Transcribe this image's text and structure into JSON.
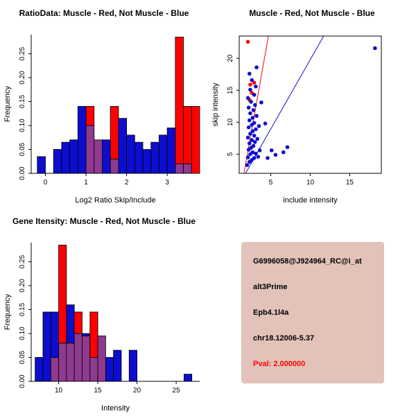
{
  "colors": {
    "red": "#ff0000",
    "blue": "#0d0dcd",
    "overlap": "#8d3a8f",
    "axis": "#000000",
    "info_bg": "#e2c2b9",
    "pval": "#ff0000"
  },
  "info_panel": {
    "probe_id": "G6996058@J924964_RC@i_at",
    "splice_type": "alt3Prime",
    "gene": "Epb4.1l4a",
    "location": "chr18.12006-5.37",
    "pval": "Pval: 2.000000"
  },
  "chart_data": [
    {
      "id": "ratio-hist",
      "type": "bar",
      "title": "RatioData: Muscle - Red, Not Muscle - Blue",
      "xlabel": "Log2 Ratio Skip/Include",
      "ylabel": "Frequency",
      "xlim": [
        -0.35,
        3.8
      ],
      "ylim": [
        0,
        0.29
      ],
      "xticks": [
        0,
        1,
        2,
        3
      ],
      "yticks": [
        0,
        0.05,
        0.1,
        0.15,
        0.2,
        0.25
      ],
      "ytick_dec": 2,
      "bin_width": 0.2,
      "series": [
        {
          "name": "Muscle",
          "color_key": "red"
        },
        {
          "name": "Not Muscle",
          "color_key": "blue"
        }
      ],
      "bins": [
        {
          "x": -0.2,
          "red": 0,
          "blue": 0.035
        },
        {
          "x": 0.2,
          "red": 0,
          "blue": 0.05
        },
        {
          "x": 0.4,
          "red": 0,
          "blue": 0.065
        },
        {
          "x": 0.6,
          "red": 0,
          "blue": 0.07
        },
        {
          "x": 0.8,
          "red": 0,
          "blue": 0.14
        },
        {
          "x": 1.0,
          "red": 0.14,
          "blue": 0.1
        },
        {
          "x": 1.2,
          "red": 0.07,
          "blue": 0.07
        },
        {
          "x": 1.4,
          "red": 0,
          "blue": 0.07
        },
        {
          "x": 1.6,
          "red": 0.14,
          "blue": 0.03
        },
        {
          "x": 1.8,
          "red": 0,
          "blue": 0.115
        },
        {
          "x": 2.0,
          "red": 0,
          "blue": 0.08
        },
        {
          "x": 2.2,
          "red": 0,
          "blue": 0.065
        },
        {
          "x": 2.4,
          "red": 0,
          "blue": 0.05
        },
        {
          "x": 2.6,
          "red": 0,
          "blue": 0.065
        },
        {
          "x": 2.8,
          "red": 0,
          "blue": 0.08
        },
        {
          "x": 3.0,
          "red": 0,
          "blue": 0.095
        },
        {
          "x": 3.2,
          "red": 0.285,
          "blue": 0.02
        },
        {
          "x": 3.4,
          "red": 0.14,
          "blue": 0.02
        },
        {
          "x": 3.6,
          "red": 0.14,
          "blue": 0
        }
      ]
    },
    {
      "id": "scatter",
      "type": "scatter",
      "title": "Muscle - Red, Not Muscle - Blue",
      "xlabel": "include intensity",
      "ylabel": "skip intensity",
      "xlim": [
        1,
        19
      ],
      "ylim": [
        2,
        23.5
      ],
      "xticks": [
        5,
        10,
        15
      ],
      "yticks": [
        5,
        10,
        15,
        20
      ],
      "series": [
        {
          "name": "Muscle",
          "color_key": "red",
          "points": [
            [
              2.1,
              22.6
            ],
            [
              2.3,
              13.5
            ],
            [
              2.6,
              14.6
            ],
            [
              2.4,
              15.9
            ],
            [
              2.9,
              16.2
            ]
          ]
        },
        {
          "name": "Not Muscle",
          "color_key": "blue",
          "points": [
            [
              2.0,
              3.3
            ],
            [
              2.3,
              3.8
            ],
            [
              2.6,
              4.1
            ],
            [
              2.1,
              4.5
            ],
            [
              2.9,
              4.4
            ],
            [
              3.4,
              4.6
            ],
            [
              2.4,
              5.0
            ],
            [
              2.7,
              5.3
            ],
            [
              3.1,
              5.1
            ],
            [
              2.2,
              5.7
            ],
            [
              2.5,
              6.0
            ],
            [
              3.6,
              5.6
            ],
            [
              2.8,
              6.3
            ],
            [
              2.3,
              6.7
            ],
            [
              3.0,
              6.9
            ],
            [
              2.6,
              7.2
            ],
            [
              2.1,
              7.6
            ],
            [
              3.3,
              7.4
            ],
            [
              2.9,
              7.9
            ],
            [
              2.4,
              8.2
            ],
            [
              2.7,
              8.6
            ],
            [
              3.1,
              8.9
            ],
            [
              2.2,
              9.2
            ],
            [
              2.6,
              9.6
            ],
            [
              3.5,
              9.4
            ],
            [
              2.9,
              9.9
            ],
            [
              2.3,
              10.3
            ],
            [
              4.3,
              9.8
            ],
            [
              2.7,
              10.7
            ],
            [
              3.2,
              11.0
            ],
            [
              2.4,
              11.4
            ],
            [
              2.8,
              11.9
            ],
            [
              2.2,
              12.3
            ],
            [
              3.0,
              12.7
            ],
            [
              2.5,
              13.2
            ],
            [
              3.8,
              13.1
            ],
            [
              2.1,
              13.8
            ],
            [
              2.9,
              14.3
            ],
            [
              2.4,
              15.1
            ],
            [
              3.1,
              15.6
            ],
            [
              2.6,
              16.6
            ],
            [
              2.3,
              17.6
            ],
            [
              3.2,
              18.6
            ],
            [
              4.6,
              4.4
            ],
            [
              5.1,
              5.6
            ],
            [
              5.6,
              4.9
            ],
            [
              6.6,
              5.3
            ],
            [
              7.1,
              6.1
            ],
            [
              18.2,
              21.6
            ]
          ]
        }
      ],
      "lines": [
        {
          "name": "muscle-fit",
          "color_key": "red",
          "x1": 1.6,
          "y1": 2.0,
          "x2": 4.7,
          "y2": 23.5
        },
        {
          "name": "not-muscle-fit",
          "color_key": "blue",
          "x1": 1.8,
          "y1": 2.0,
          "x2": 11.7,
          "y2": 23.5
        }
      ]
    },
    {
      "id": "gene-hist",
      "type": "bar",
      "title": "Gene Itensity: Muscle - Red, Not Muscle - Blue",
      "xlabel": "Intensity",
      "ylabel": "Frequency",
      "xlim": [
        6.5,
        28
      ],
      "ylim": [
        0,
        0.29
      ],
      "xticks": [
        10,
        15,
        20,
        25
      ],
      "yticks": [
        0,
        0.05,
        0.1,
        0.15,
        0.2,
        0.25
      ],
      "ytick_dec": 2,
      "bin_width": 1,
      "series": [
        {
          "name": "Muscle",
          "color_key": "red"
        },
        {
          "name": "Not Muscle",
          "color_key": "blue"
        }
      ],
      "bins": [
        {
          "x": 7,
          "red": 0,
          "blue": 0.05
        },
        {
          "x": 8,
          "red": 0,
          "blue": 0.145
        },
        {
          "x": 9,
          "red": 0.05,
          "blue": 0.145
        },
        {
          "x": 10,
          "red": 0.285,
          "blue": 0.08
        },
        {
          "x": 11,
          "red": 0.08,
          "blue": 0.16
        },
        {
          "x": 12,
          "red": 0.145,
          "blue": 0.1
        },
        {
          "x": 13,
          "red": 0.095,
          "blue": 0.1
        },
        {
          "x": 14,
          "red": 0.145,
          "blue": 0.05
        },
        {
          "x": 15,
          "red": 0.095,
          "blue": 0.095
        },
        {
          "x": 16,
          "red": 0,
          "blue": 0.05
        },
        {
          "x": 17,
          "red": 0,
          "blue": 0.065
        },
        {
          "x": 19,
          "red": 0,
          "blue": 0.065
        },
        {
          "x": 26,
          "red": 0,
          "blue": 0.015
        }
      ]
    }
  ]
}
